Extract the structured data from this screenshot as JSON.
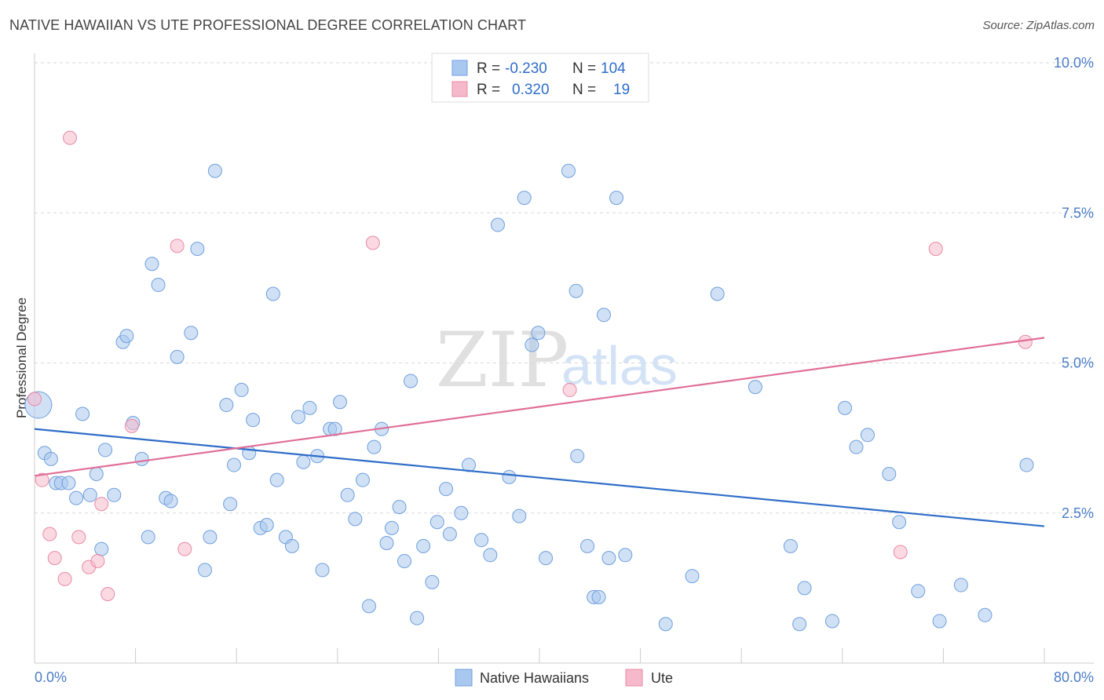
{
  "title": "NATIVE HAWAIIAN VS UTE PROFESSIONAL DEGREE CORRELATION CHART",
  "source": "Source: ZipAtlas.com",
  "watermark": {
    "zip": "ZIP",
    "atlas": "atlas"
  },
  "legend": {
    "rows": [
      {
        "r_label": "R =",
        "r_value": "-0.230",
        "n_label": "N =",
        "n_value": "104",
        "color": "#a9c8ef",
        "stroke": "#6f9fdc"
      },
      {
        "r_label": "R =",
        "r_value": "0.320",
        "n_label": "N =",
        "n_value": "19",
        "color": "#f6b9cc",
        "stroke": "#e88aa6"
      }
    ]
  },
  "bottom_legend": [
    {
      "label": "Native Hawaiians",
      "color": "#a9c8ef",
      "stroke": "#6f9fdc"
    },
    {
      "label": "Ute",
      "color": "#f6b9cc",
      "stroke": "#e88aa6"
    }
  ],
  "chart_data": {
    "type": "scatter",
    "title": "NATIVE HAWAIIAN VS UTE PROFESSIONAL DEGREE CORRELATION CHART",
    "xlabel": "",
    "ylabel": "Professional Degree",
    "xlim": [
      0,
      80
    ],
    "ylim": [
      0,
      10.5
    ],
    "x_tick_labels": [
      "0.0%",
      "80.0%"
    ],
    "y_ticks": [
      2.5,
      5.0,
      7.5,
      10.0
    ],
    "y_tick_labels": [
      "2.5%",
      "5.0%",
      "7.5%",
      "10.0%"
    ],
    "grid": true,
    "legend_placement": "top-center",
    "series": [
      {
        "name": "Native Hawaiians",
        "color": "#a9c8ef",
        "stroke": "#6f9fdc",
        "trend": {
          "x": [
            0,
            80
          ],
          "y": [
            3.9,
            2.28
          ],
          "color": "#2f6dc8"
        },
        "points": [
          [
            0.3,
            4.3
          ],
          [
            0.8,
            3.5
          ],
          [
            1.3,
            3.4
          ],
          [
            1.7,
            3.0
          ],
          [
            2.1,
            3.0
          ],
          [
            2.7,
            3.0
          ],
          [
            3.3,
            2.75
          ],
          [
            3.8,
            4.15
          ],
          [
            4.4,
            2.8
          ],
          [
            4.9,
            3.15
          ],
          [
            5.3,
            1.9
          ],
          [
            5.6,
            3.55
          ],
          [
            6.3,
            2.8
          ],
          [
            7.0,
            5.35
          ],
          [
            7.3,
            5.45
          ],
          [
            7.8,
            4.0
          ],
          [
            8.5,
            3.4
          ],
          [
            9.0,
            2.1
          ],
          [
            9.3,
            6.65
          ],
          [
            9.8,
            6.3
          ],
          [
            10.4,
            2.75
          ],
          [
            10.8,
            2.7
          ],
          [
            11.3,
            5.1
          ],
          [
            12.4,
            5.5
          ],
          [
            12.9,
            6.9
          ],
          [
            13.5,
            1.55
          ],
          [
            13.9,
            2.1
          ],
          [
            14.3,
            8.2
          ],
          [
            15.2,
            4.3
          ],
          [
            15.5,
            2.65
          ],
          [
            15.8,
            3.3
          ],
          [
            16.4,
            4.55
          ],
          [
            17.0,
            3.5
          ],
          [
            17.3,
            4.05
          ],
          [
            17.9,
            2.25
          ],
          [
            18.4,
            2.3
          ],
          [
            18.9,
            6.15
          ],
          [
            19.2,
            3.05
          ],
          [
            19.9,
            2.1
          ],
          [
            20.4,
            1.95
          ],
          [
            20.9,
            4.1
          ],
          [
            21.3,
            3.35
          ],
          [
            21.8,
            4.25
          ],
          [
            22.4,
            3.45
          ],
          [
            22.8,
            1.55
          ],
          [
            23.4,
            3.9
          ],
          [
            23.8,
            3.9
          ],
          [
            24.2,
            4.35
          ],
          [
            24.8,
            2.8
          ],
          [
            25.4,
            2.4
          ],
          [
            26.0,
            3.05
          ],
          [
            26.5,
            0.95
          ],
          [
            26.9,
            3.6
          ],
          [
            27.5,
            3.9
          ],
          [
            27.9,
            2.0
          ],
          [
            28.3,
            2.25
          ],
          [
            28.9,
            2.6
          ],
          [
            29.3,
            1.7
          ],
          [
            29.8,
            4.7
          ],
          [
            30.3,
            0.75
          ],
          [
            30.8,
            1.95
          ],
          [
            31.5,
            1.35
          ],
          [
            31.9,
            2.35
          ],
          [
            32.6,
            2.9
          ],
          [
            32.9,
            2.15
          ],
          [
            33.8,
            2.5
          ],
          [
            34.4,
            3.3
          ],
          [
            35.4,
            2.05
          ],
          [
            36.1,
            1.8
          ],
          [
            36.7,
            7.3
          ],
          [
            37.6,
            3.1
          ],
          [
            38.4,
            2.45
          ],
          [
            38.8,
            7.75
          ],
          [
            39.4,
            5.3
          ],
          [
            39.9,
            5.5
          ],
          [
            40.5,
            1.75
          ],
          [
            42.3,
            8.2
          ],
          [
            42.9,
            6.2
          ],
          [
            43.0,
            3.45
          ],
          [
            43.8,
            1.95
          ],
          [
            44.3,
            1.1
          ],
          [
            44.7,
            1.1
          ],
          [
            45.1,
            5.8
          ],
          [
            45.5,
            1.75
          ],
          [
            46.1,
            7.75
          ],
          [
            46.8,
            1.8
          ],
          [
            50.0,
            0.65
          ],
          [
            52.1,
            1.45
          ],
          [
            54.1,
            6.15
          ],
          [
            57.1,
            4.6
          ],
          [
            59.9,
            1.95
          ],
          [
            60.6,
            0.65
          ],
          [
            61.0,
            1.25
          ],
          [
            63.2,
            0.7
          ],
          [
            64.2,
            4.25
          ],
          [
            65.1,
            3.6
          ],
          [
            66.0,
            3.8
          ],
          [
            67.7,
            3.15
          ],
          [
            68.5,
            2.35
          ],
          [
            70.0,
            1.2
          ],
          [
            71.7,
            0.7
          ],
          [
            73.4,
            1.3
          ],
          [
            75.3,
            0.8
          ],
          [
            78.6,
            3.3
          ]
        ]
      },
      {
        "name": "Ute",
        "color": "#f6b9cc",
        "stroke": "#e88aa6",
        "trend": {
          "x": [
            0,
            80
          ],
          "y": [
            3.12,
            5.42
          ],
          "color": "#e06e98"
        },
        "points": [
          [
            0.0,
            4.4
          ],
          [
            0.6,
            3.05
          ],
          [
            1.2,
            2.15
          ],
          [
            1.6,
            1.75
          ],
          [
            2.4,
            1.4
          ],
          [
            2.8,
            8.75
          ],
          [
            3.5,
            2.1
          ],
          [
            4.3,
            1.6
          ],
          [
            5.0,
            1.7
          ],
          [
            5.3,
            2.65
          ],
          [
            5.8,
            1.15
          ],
          [
            7.7,
            3.95
          ],
          [
            11.3,
            6.95
          ],
          [
            11.9,
            1.9
          ],
          [
            26.8,
            7.0
          ],
          [
            42.4,
            4.55
          ],
          [
            68.6,
            1.85
          ],
          [
            71.4,
            6.9
          ],
          [
            78.5,
            5.35
          ]
        ]
      }
    ]
  }
}
